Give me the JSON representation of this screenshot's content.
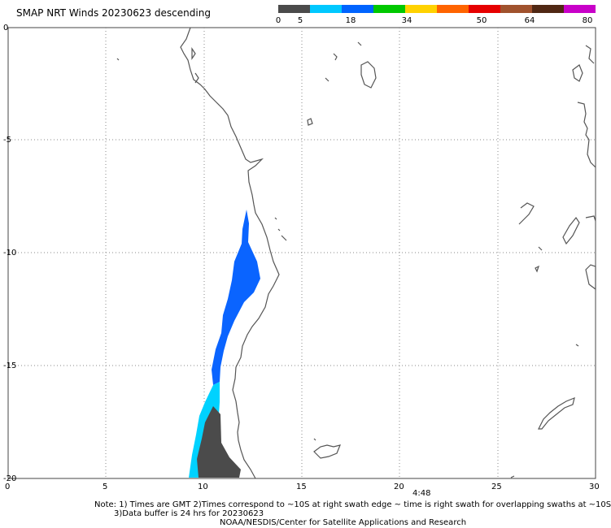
{
  "title": "SMAP NRT Winds  20230623 descending",
  "colorbar": {
    "ticks": [
      "0",
      "5",
      "18",
      "34",
      "50",
      "64",
      "80"
    ],
    "segments": [
      {
        "color": "#4b4b4b"
      },
      {
        "color": "#00c8ff"
      },
      {
        "color": "#0064ff"
      },
      {
        "color": "#00c800"
      },
      {
        "color": "#ffd200"
      },
      {
        "color": "#ff6400"
      },
      {
        "color": "#e60000"
      },
      {
        "color": "#a0522d"
      },
      {
        "color": "#502814"
      },
      {
        "color": "#c800c8"
      }
    ]
  },
  "map": {
    "lon_range": [
      0,
      30
    ],
    "lat_range": [
      -20,
      0
    ],
    "x_ticks": [
      "0",
      "5",
      "10",
      "15",
      "20",
      "25",
      "30"
    ],
    "y_ticks": [
      "0",
      "-5",
      "-10",
      "-15",
      "-20"
    ],
    "time_label": "4:48",
    "colors": {
      "coast": "#555555",
      "dark_swath": "#4b4b4b",
      "light_swath": "#00e6ff",
      "blue_swath": "#0064ff",
      "grid": "#888888"
    }
  },
  "notes": {
    "line1": "Note: 1) Times are GMT 2)Times correspond to ~10S at right swath edge ~ time is right swath for overlapping swaths at ~10S",
    "line2": "3)Data buffer is 24 hrs for 20230623",
    "line3": "NOAA/NESDIS/Center for Satellite Applications and Research"
  }
}
